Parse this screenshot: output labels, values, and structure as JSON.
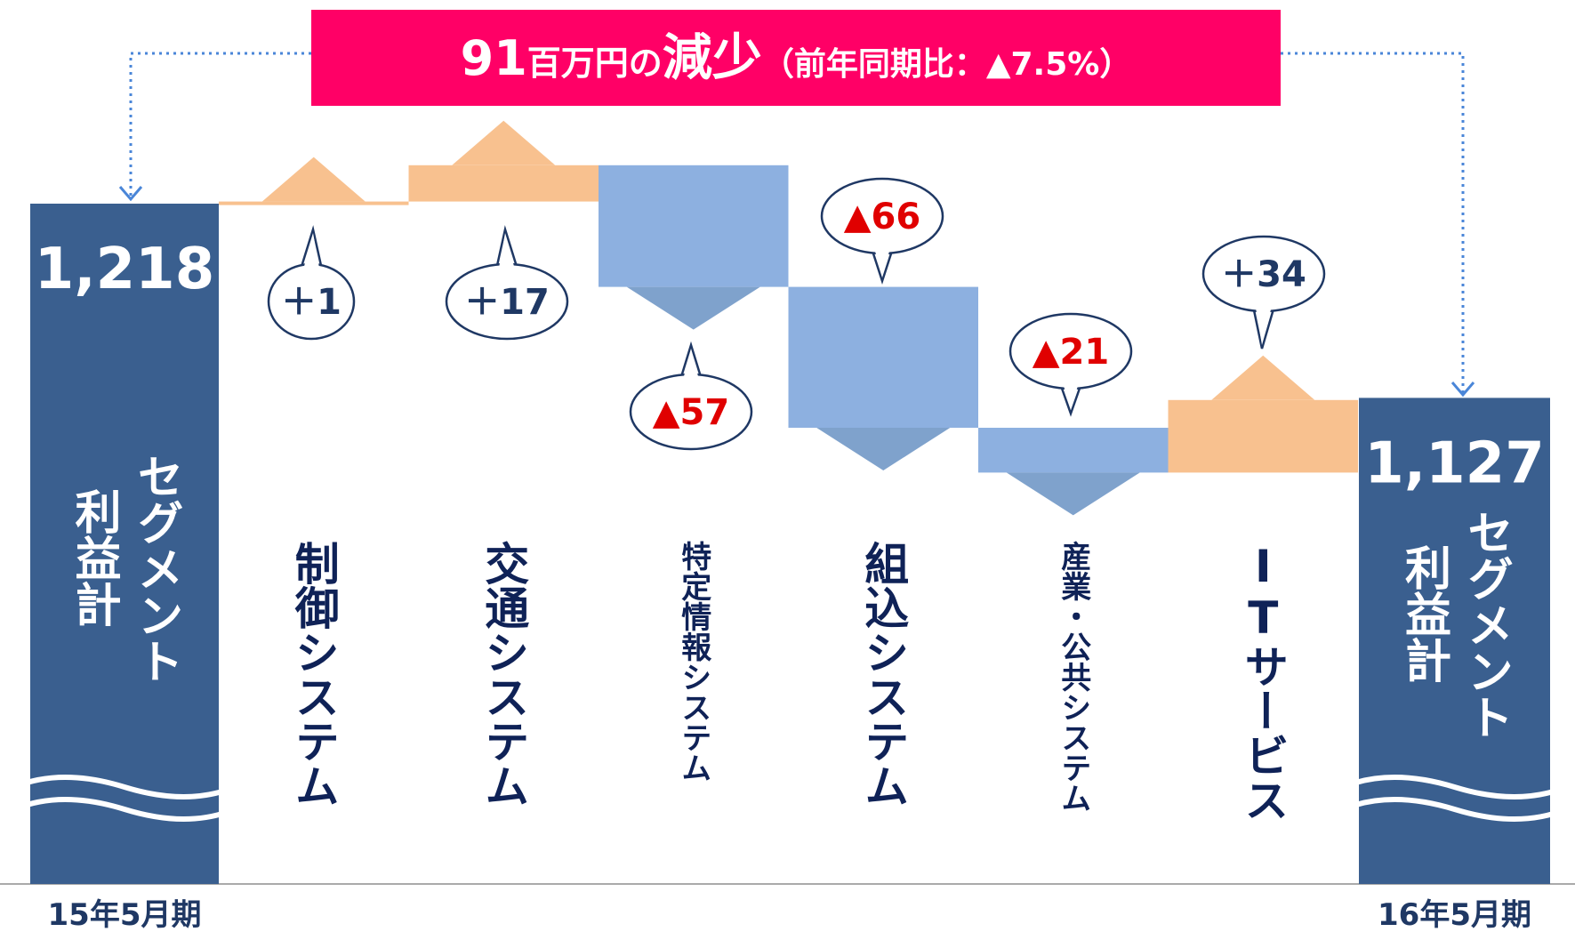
{
  "chart_data": {
    "type": "waterfall",
    "title": {
      "amount": "91",
      "unit": "百万円の",
      "word": "減少",
      "note": "（前年同期比：▲7.5%）"
    },
    "total_label": [
      "セグメント",
      "利益計"
    ],
    "start": {
      "period": "15年5月期",
      "value": 1218,
      "value_label": "1,218"
    },
    "end": {
      "period": "16年5月期",
      "value": 1127,
      "value_label": "1,127"
    },
    "categories": [
      "制御システム",
      "交通システム",
      "特定情報システム",
      "組込システム",
      "産業・公共システム",
      "ITサービス"
    ],
    "values": [
      1,
      17,
      -57,
      -66,
      -21,
      34
    ],
    "value_labels": [
      "＋1",
      "＋17",
      "▲57",
      "▲66",
      "▲21",
      "＋34"
    ],
    "colors": {
      "total": "#3a5f8f",
      "increase": "#f8c18f",
      "decrease": "#8db0e0"
    }
  }
}
